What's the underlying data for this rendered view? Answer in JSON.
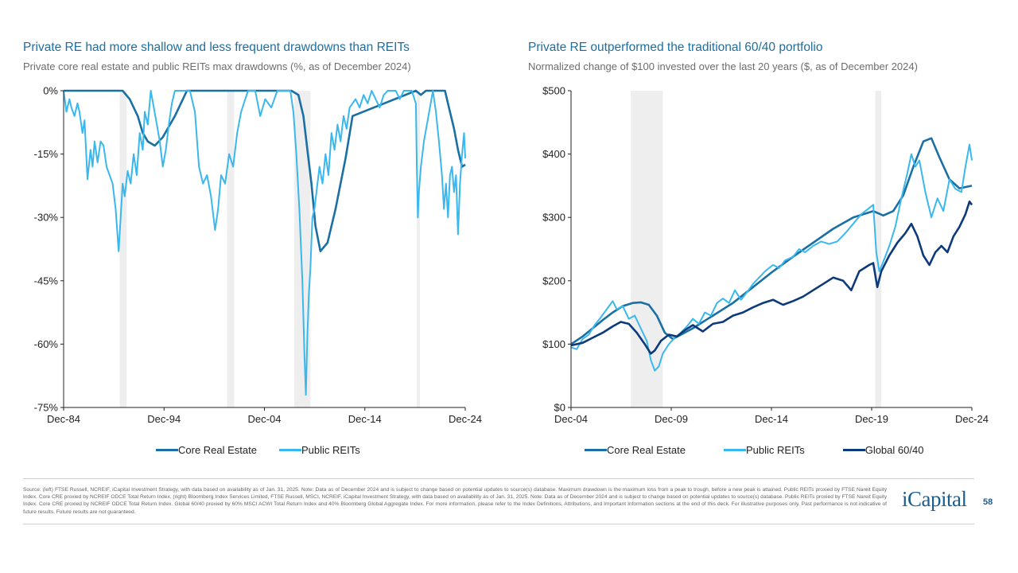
{
  "left": {
    "title": "Private RE had more shallow and less frequent drawdowns than REITs",
    "subtitle": "Private core real estate and public REITs max drawdowns (%, as of December 2024)"
  },
  "right": {
    "title": "Private RE outperformed the traditional 60/40 portfolio",
    "subtitle": "Normalized change of $100 invested over the last 20 years ($, as of December 2024)"
  },
  "colors": {
    "core_re": "#1a6fa4",
    "public_reits": "#3ab8ee",
    "global_6040": "#0d3a7a",
    "recession_shade": "#eeeeee",
    "title": "#1f6e9e",
    "axis": "#222222"
  },
  "chart_data": [
    {
      "type": "line",
      "title": "Private RE had more shallow and less frequent drawdowns than REITs",
      "unit": "%",
      "ylim": [
        -75,
        0
      ],
      "yticks": [
        0,
        -15,
        -30,
        -45,
        -60,
        -75
      ],
      "ytick_labels": [
        "0%",
        "-15%",
        "-30%",
        "-45%",
        "-60%",
        "-75%"
      ],
      "xlim": [
        1984.92,
        2024.92
      ],
      "xticks": [
        1984.92,
        1994.92,
        2004.92,
        2014.92,
        2024.92
      ],
      "xtick_labels": [
        "Dec-84",
        "Dec-94",
        "Dec-04",
        "Dec-14",
        "Dec-24"
      ],
      "recessions": [
        [
          1990.5,
          1991.2
        ],
        [
          2001.2,
          2001.9
        ],
        [
          2007.9,
          2009.5
        ],
        [
          2020.1,
          2020.4
        ]
      ],
      "legend": [
        "Core Real Estate",
        "Public REITs"
      ],
      "series": [
        {
          "name": "Core Real Estate",
          "color_key": "core_re",
          "x": [
            1984.92,
            1990.8,
            1991.5,
            1992.3,
            1992.8,
            1993.3,
            1994.0,
            1994.8,
            1996.0,
            1997.2,
            2007.6,
            2008.3,
            2008.8,
            2009.2,
            2009.6,
            2010.0,
            2010.5,
            2011.2,
            2012.0,
            2013.0,
            2013.7,
            2020.0,
            2020.5,
            2021.0,
            2021.5,
            2022.0,
            2022.9,
            2023.3,
            2023.8,
            2024.2,
            2024.6,
            2024.92
          ],
          "y": [
            0,
            0,
            -2,
            -6,
            -10,
            -12,
            -13,
            -11,
            -6,
            0,
            0,
            -1,
            -6,
            -14,
            -22,
            -32,
            -38,
            -36,
            -28,
            -16,
            -6,
            0,
            -1,
            0,
            0,
            0,
            0,
            -4,
            -9,
            -14,
            -18,
            -17.5
          ]
        },
        {
          "name": "Public REITs",
          "color_key": "public_reits",
          "x": [
            1984.92,
            1985.2,
            1985.5,
            1985.7,
            1986.0,
            1986.3,
            1986.5,
            1986.8,
            1987.0,
            1987.3,
            1987.6,
            1987.8,
            1988.0,
            1988.3,
            1988.6,
            1988.9,
            1989.2,
            1989.5,
            1989.8,
            1990.1,
            1990.4,
            1990.6,
            1990.8,
            1991.0,
            1991.3,
            1991.6,
            1991.9,
            1992.2,
            1992.5,
            1992.8,
            1993.0,
            1993.3,
            1993.6,
            1993.9,
            1994.2,
            1994.5,
            1994.8,
            1995.1,
            1995.4,
            1995.7,
            1996.0,
            1996.5,
            1997.0,
            1997.5,
            1998.0,
            1998.4,
            1998.8,
            1999.2,
            1999.6,
            2000.0,
            2000.3,
            2000.6,
            2001.0,
            2001.4,
            2001.8,
            2002.2,
            2002.6,
            2003.0,
            2003.3,
            2003.6,
            2004.0,
            2004.5,
            2005.0,
            2005.6,
            2006.2,
            2006.8,
            2007.2,
            2007.5,
            2007.8,
            2008.1,
            2008.4,
            2008.7,
            2008.9,
            2009.05,
            2009.2,
            2009.35,
            2009.5,
            2009.7,
            2009.9,
            2010.1,
            2010.4,
            2010.7,
            2011.0,
            2011.3,
            2011.6,
            2011.9,
            2012.2,
            2012.5,
            2012.8,
            2013.1,
            2013.4,
            2013.7,
            2014.0,
            2014.4,
            2014.8,
            2015.2,
            2015.6,
            2016.0,
            2016.4,
            2016.8,
            2017.2,
            2017.6,
            2018.0,
            2018.4,
            2018.8,
            2019.2,
            2019.6,
            2020.0,
            2020.1,
            2020.2,
            2020.3,
            2020.5,
            2020.8,
            2021.1,
            2021.4,
            2021.7,
            2022.0,
            2022.3,
            2022.6,
            2022.8,
            2023.0,
            2023.2,
            2023.4,
            2023.6,
            2023.8,
            2024.0,
            2024.2,
            2024.4,
            2024.6,
            2024.8,
            2024.92
          ],
          "y": [
            0,
            -5,
            -2,
            -4,
            -6,
            -3,
            -5,
            -10,
            -7,
            -21,
            -14,
            -18,
            -12,
            -17,
            -12,
            -13,
            -18,
            -20,
            -22,
            -28,
            -38,
            -30,
            -22,
            -25,
            -19,
            -22,
            -15,
            -20,
            -10,
            -14,
            -5,
            -8,
            0,
            -4,
            -8,
            -12,
            -18,
            -14,
            -8,
            -3,
            0,
            0,
            0,
            0,
            -5,
            -18,
            -22,
            -20,
            -25,
            -33,
            -28,
            -20,
            -22,
            -15,
            -18,
            -10,
            -5,
            -2,
            0,
            0,
            0,
            -6,
            -2,
            -4,
            0,
            0,
            0,
            0,
            -5,
            -15,
            -28,
            -45,
            -62,
            -72,
            -58,
            -48,
            -42,
            -30,
            -28,
            -24,
            -18,
            -22,
            -15,
            -20,
            -10,
            -14,
            -8,
            -12,
            -6,
            -9,
            -4,
            -3,
            -2,
            -4,
            -1,
            -3,
            0,
            -2,
            -4,
            -1,
            0,
            0,
            0,
            -2,
            0,
            0,
            0,
            -3,
            -18,
            -30,
            -24,
            -18,
            -12,
            -8,
            -4,
            0,
            -5,
            -12,
            -20,
            -28,
            -22,
            -30,
            -20,
            -18,
            -24,
            -20,
            -34,
            -22,
            -15,
            -10,
            -16
          ]
        }
      ]
    },
    {
      "type": "line",
      "title": "Private RE outperformed the traditional 60/40 portfolio",
      "unit": "$",
      "ylim": [
        0,
        500
      ],
      "yticks": [
        0,
        100,
        200,
        300,
        400,
        500
      ],
      "ytick_labels": [
        "$0",
        "$100",
        "$200",
        "$300",
        "$400",
        "$500"
      ],
      "xlim": [
        2004.92,
        2024.92
      ],
      "xticks": [
        2004.92,
        2009.92,
        2014.92,
        2019.92,
        2024.92
      ],
      "xtick_labels": [
        "Dec-04",
        "Dec-09",
        "Dec-14",
        "Dec-19",
        "Dec-24"
      ],
      "recessions": [
        [
          2007.9,
          2009.5
        ],
        [
          2020.1,
          2020.4
        ]
      ],
      "legend": [
        "Core Real Estate",
        "Public REITs",
        "Global 60/40"
      ],
      "series": [
        {
          "name": "Core Real Estate",
          "color_key": "core_re",
          "x": [
            2004.92,
            2005.5,
            2006.0,
            2006.5,
            2007.0,
            2007.5,
            2008.0,
            2008.4,
            2008.8,
            2009.2,
            2009.6,
            2010.0,
            2011.0,
            2012.0,
            2013.0,
            2014.0,
            2015.0,
            2016.0,
            2017.0,
            2018.0,
            2019.0,
            2020.0,
            2020.5,
            2021.0,
            2021.5,
            2022.0,
            2022.5,
            2022.9,
            2023.3,
            2023.8,
            2024.3,
            2024.92
          ],
          "y": [
            100,
            112,
            125,
            138,
            150,
            160,
            165,
            166,
            162,
            145,
            118,
            108,
            125,
            145,
            165,
            190,
            215,
            238,
            260,
            282,
            300,
            310,
            303,
            310,
            335,
            380,
            420,
            425,
            395,
            360,
            346,
            350
          ]
        },
        {
          "name": "Public REITs",
          "color_key": "public_reits",
          "x": [
            2004.92,
            2005.2,
            2005.5,
            2005.8,
            2006.1,
            2006.4,
            2006.7,
            2007.0,
            2007.2,
            2007.5,
            2007.8,
            2008.1,
            2008.4,
            2008.7,
            2008.9,
            2009.1,
            2009.3,
            2009.5,
            2009.8,
            2010.1,
            2010.4,
            2010.7,
            2011.0,
            2011.3,
            2011.6,
            2011.9,
            2012.2,
            2012.5,
            2012.8,
            2013.1,
            2013.4,
            2013.7,
            2014.0,
            2014.3,
            2014.6,
            2015.0,
            2015.3,
            2015.6,
            2016.0,
            2016.3,
            2016.6,
            2017.0,
            2017.4,
            2017.8,
            2018.2,
            2018.6,
            2019.0,
            2019.4,
            2019.8,
            2020.0,
            2020.15,
            2020.3,
            2020.5,
            2020.8,
            2021.1,
            2021.4,
            2021.7,
            2021.9,
            2022.1,
            2022.3,
            2022.6,
            2022.9,
            2023.2,
            2023.5,
            2023.8,
            2024.1,
            2024.4,
            2024.6,
            2024.8,
            2024.92
          ],
          "y": [
            95,
            92,
            108,
            115,
            130,
            142,
            155,
            168,
            155,
            160,
            140,
            145,
            125,
            105,
            75,
            58,
            65,
            85,
            100,
            110,
            118,
            128,
            140,
            132,
            150,
            145,
            165,
            172,
            165,
            185,
            170,
            182,
            195,
            205,
            215,
            225,
            220,
            232,
            238,
            250,
            245,
            255,
            262,
            258,
            262,
            275,
            290,
            305,
            315,
            320,
            245,
            215,
            230,
            255,
            285,
            330,
            370,
            400,
            380,
            390,
            340,
            300,
            330,
            310,
            360,
            345,
            340,
            380,
            415,
            390
          ]
        },
        {
          "name": "Global 60/40",
          "color_key": "global_6040",
          "x": [
            2004.92,
            2005.5,
            2006.0,
            2006.5,
            2007.0,
            2007.4,
            2007.8,
            2008.2,
            2008.6,
            2008.9,
            2009.1,
            2009.4,
            2009.8,
            2010.2,
            2010.6,
            2011.0,
            2011.5,
            2012.0,
            2012.5,
            2013.0,
            2013.5,
            2014.0,
            2014.5,
            2015.0,
            2015.5,
            2016.0,
            2016.5,
            2017.0,
            2017.5,
            2018.0,
            2018.5,
            2018.9,
            2019.3,
            2019.8,
            2020.0,
            2020.2,
            2020.4,
            2020.8,
            2021.2,
            2021.6,
            2021.9,
            2022.2,
            2022.5,
            2022.8,
            2023.1,
            2023.4,
            2023.7,
            2024.0,
            2024.3,
            2024.6,
            2024.8,
            2024.92
          ],
          "y": [
            98,
            102,
            110,
            118,
            128,
            135,
            132,
            118,
            100,
            85,
            90,
            105,
            115,
            112,
            122,
            130,
            120,
            132,
            135,
            145,
            150,
            158,
            165,
            170,
            162,
            168,
            175,
            185,
            195,
            205,
            200,
            185,
            215,
            225,
            228,
            190,
            215,
            240,
            260,
            275,
            290,
            270,
            240,
            225,
            245,
            255,
            245,
            270,
            285,
            305,
            325,
            320
          ]
        }
      ]
    }
  ],
  "legend_labels": {
    "core_re": "Core Real Estate",
    "public_reits": "Public REITs",
    "global_6040": "Global 60/40"
  },
  "footer": {
    "source": "Source: (left) FTSE Russell, NCREIF, iCapital Investment Strategy, with data based on availability as of Jan. 31, 2025. Note: Data as of December 2024 and is subject to change based on potential updates to source(s) database. Maximum drawdown is the maximum loss from a peak to trough, before a new peak is attained. Public REITs proxied by FTSE Nareit Equity Index. Core CRE proxied by NCREIF ODCE Total Return Index. (right) Bloomberg Index Services Limited, FTSE Russell, MSCI, NCREIF, iCapital Investment Strategy, with data based on availability as of Jan. 31, 2025. Note: Data as of December 2024 and is subject to change based on potential updates to source(s) database. Public REITs proxied by FTSE Nareit Equity Index. Core CRE proxied by NCREIF ODCE Total Return Index. Global 60/40 proxied by 60% MSCI ACWI Total Return Index and 40% Bloomberg Global Aggregate Index. For more information, please refer to the Index Definitions, Attributions, and Important Information sections at the end of this deck. For illustrative purposes only. Past performance is not indicative of future results. Future results are not guaranteed.",
    "logo": "iCapital",
    "page_number": "58"
  }
}
